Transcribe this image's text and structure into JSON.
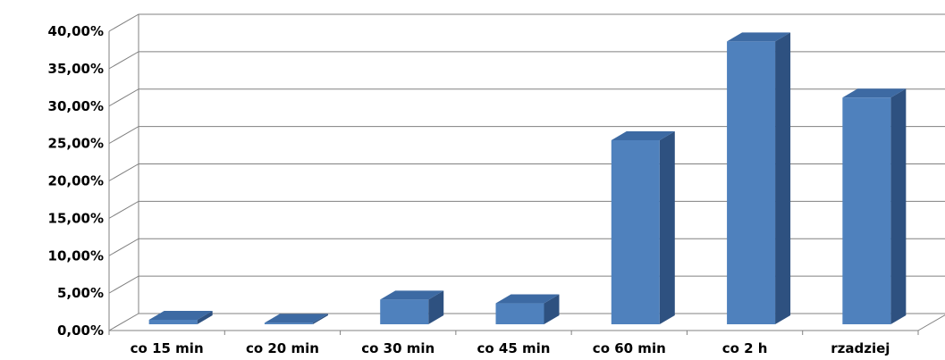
{
  "chart_data": {
    "type": "bar",
    "title": "",
    "xlabel": "",
    "ylabel": "",
    "categories": [
      "co 15 min",
      "co 20 min",
      "co 30 min",
      "co 45 min",
      "co 60 min",
      "co 2 h",
      "rzadziej"
    ],
    "values": [
      0.6,
      0.2,
      3.3,
      2.8,
      24.6,
      37.8,
      30.3
    ],
    "ylim": [
      0,
      40
    ],
    "yticks": [
      "0,00%",
      "5,00%",
      "10,00%",
      "15,00%",
      "20,00%",
      "25,00%",
      "30,00%",
      "35,00%",
      "40,00%"
    ],
    "grid": true,
    "legend": false,
    "colors": {
      "bar_front": "#4f81bd",
      "bar_side": "#2e5180",
      "bar_top": "#3d6aa3",
      "grid": "#808080"
    }
  }
}
